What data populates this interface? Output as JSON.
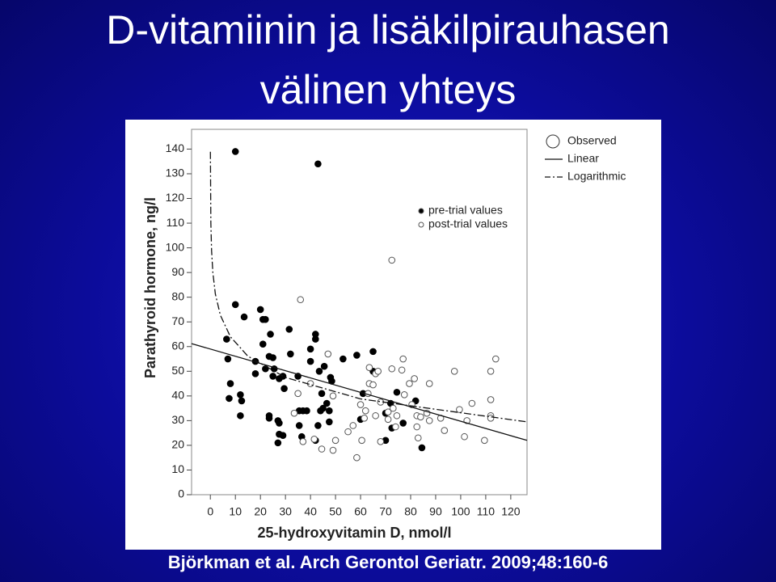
{
  "slide_title": [
    "D-vitamiinin ja lisäkilpirauhasen",
    "välinen yhteys"
  ],
  "citation": "Björkman et al. Arch Gerontol Geriatr. 2009;48:160-6",
  "chart_data": {
    "type": "scatter",
    "xlabel": "25-hydroxyvitamin D, nmol/l",
    "ylabel": "Parathyroid hormone, ng/l",
    "xlim": [
      -7.5,
      126.5
    ],
    "ylim": [
      0,
      148
    ],
    "xticks": [
      0,
      10,
      20,
      30,
      40,
      50,
      60,
      70,
      80,
      90,
      100,
      110,
      120
    ],
    "yticks": [
      0,
      10,
      20,
      30,
      40,
      50,
      60,
      70,
      80,
      90,
      100,
      110,
      120,
      130,
      140
    ],
    "observed_label": "Observed",
    "series": [
      {
        "name": "pre-trial values",
        "color": "#000000",
        "marker": "filled",
        "x": [
          10,
          43,
          10,
          6.5,
          7,
          8,
          7.5,
          12,
          12.5,
          12,
          13.5,
          18,
          18,
          20,
          21,
          22,
          24,
          21,
          23.5,
          25,
          25.5,
          22,
          25,
          27.5,
          29,
          29.5,
          23.5,
          23.5,
          27,
          27.5,
          27.5,
          29,
          27,
          31.5,
          32,
          35,
          35.5,
          37,
          38.5,
          35.5,
          36.5,
          42,
          42,
          40,
          40,
          43.5,
          45.5,
          48,
          48.5,
          44.5,
          46.5,
          45,
          47.5,
          44,
          43,
          47.5,
          42,
          53,
          58.5,
          65,
          65,
          61,
          60,
          72,
          74.5,
          70,
          72.5,
          77,
          82,
          84.5,
          70
        ],
        "values": [
          139,
          134,
          77,
          63,
          55,
          45,
          39,
          40.5,
          38,
          32,
          72,
          54,
          49,
          75,
          71,
          71,
          65,
          61,
          56,
          55.5,
          51,
          51,
          48,
          47,
          48,
          43,
          32,
          31,
          30,
          29,
          24.5,
          24,
          21,
          67,
          57,
          48,
          34,
          34,
          34,
          28,
          23.5,
          65,
          63,
          59,
          54,
          50,
          52,
          47.5,
          46,
          41,
          37,
          35,
          34,
          34,
          28,
          29.5,
          22,
          55,
          56.5,
          58,
          50,
          41,
          30.5,
          37,
          41.5,
          33,
          27,
          29,
          38,
          19,
          22
        ]
      },
      {
        "name": "post-trial values",
        "color": "#000000",
        "marker": "open",
        "x": [
          36,
          72.5,
          47,
          33.5,
          37,
          41.5,
          44.5,
          49,
          50,
          49,
          40,
          35,
          55,
          57,
          58.5,
          60.5,
          61.5,
          62,
          60,
          63,
          63.5,
          65,
          66,
          67,
          63.5,
          72.5,
          77,
          76.5,
          68,
          66,
          68,
          71,
          73,
          74.5,
          74,
          77.5,
          79.5,
          81.5,
          80.5,
          82.5,
          84,
          82.5,
          83,
          87.5,
          86.5,
          87.5,
          92,
          93.5,
          97.5,
          99.5,
          102.5,
          101.5,
          104.5,
          109.5,
          112,
          112,
          112,
          112,
          114,
          71
        ],
        "values": [
          79,
          95,
          57,
          33,
          21.5,
          22.5,
          18.5,
          18,
          22,
          40,
          45,
          41,
          25.5,
          28,
          15,
          22,
          31,
          34,
          36.5,
          41,
          45,
          44.5,
          49,
          50,
          51.5,
          51,
          55,
          50.5,
          37.5,
          32,
          21.5,
          33.5,
          35,
          32,
          27.5,
          40.5,
          45,
          47,
          36.5,
          32,
          31.5,
          27.5,
          23,
          45,
          33,
          30,
          31,
          26,
          50,
          34.5,
          30,
          23.5,
          37,
          22,
          38.5,
          32,
          31,
          50,
          55,
          30.5
        ]
      }
    ],
    "fits": [
      {
        "name": "Linear",
        "dash": false,
        "x": [
          -7.5,
          126.5
        ],
        "values": [
          61.2,
          22
        ]
      },
      {
        "name": "Logarithmic",
        "dash": true,
        "x": [
          0.02,
          0.2,
          0.5,
          1,
          2,
          4,
          8,
          15,
          30,
          60,
          126.5
        ],
        "values": [
          138.9,
          110,
          98.7,
          90,
          81.3,
          72.7,
          64,
          56.1,
          47.5,
          38.8,
          29.5
        ]
      }
    ]
  }
}
